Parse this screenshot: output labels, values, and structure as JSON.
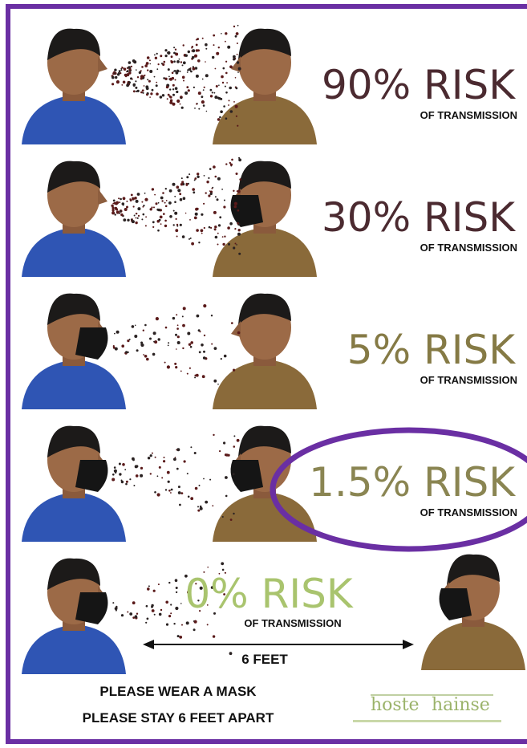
{
  "rows": [
    {
      "risk": "90% RISK",
      "sub": "OF TRANSMISSION",
      "color": "#4b2a30"
    },
    {
      "risk": "30% RISK",
      "sub": "OF TRANSMISSION",
      "color": "#4b2a30"
    },
    {
      "risk": "5% RISK",
      "sub": "OF TRANSMISSION",
      "color": "#857a45"
    },
    {
      "risk": "1.5% RISK",
      "sub": "OF TRANSMISSION",
      "color": "#8a8552"
    },
    {
      "risk": "0% RISK",
      "sub": "OF TRANSMISSION",
      "color": "#a9c46e"
    }
  ],
  "distance": "6 FEET",
  "footer": {
    "line1": "PLEASE WEAR A MASK",
    "line2": "PLEASE STAY 6 FEET APART"
  },
  "logo": {
    "left": "hoste",
    "right": "hainse"
  }
}
